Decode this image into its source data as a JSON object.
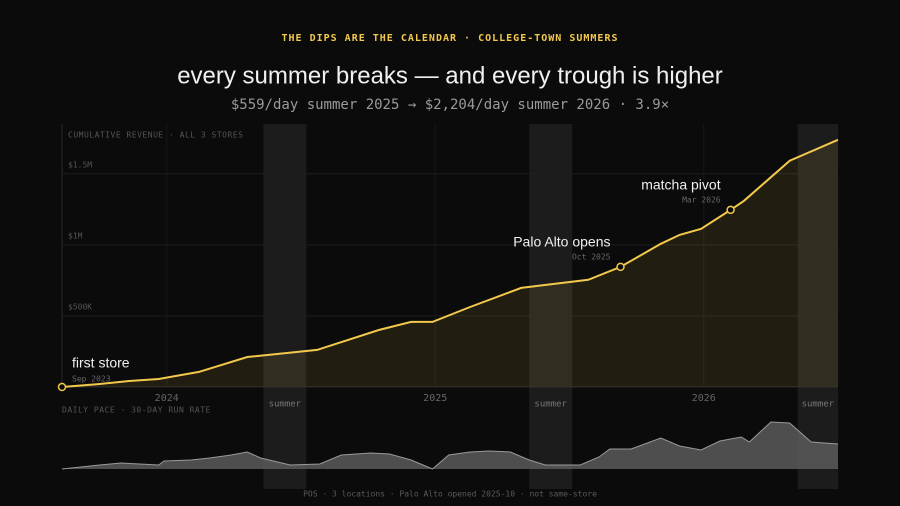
{
  "kicker": "THE DIPS ARE THE CALENDAR · COLLEGE-TOWN SUMMERS",
  "title": "every summer breaks — and every trough is higher",
  "subtitle": "$559/day summer 2025 → $2,204/day summer 2026 · 3.9×",
  "footer": "POS · 3 locations · Palo Alto opened 2025-10 · not same-store",
  "chart_data": [
    {
      "type": "line",
      "title": "CUMULATIVE REVENUE · ALL 3 STORES",
      "color": "#f2c94c",
      "grid": true,
      "x": [
        2023.61,
        2023.75,
        2023.86,
        2023.97,
        2024.12,
        2024.3,
        2024.56,
        2024.79,
        2024.91,
        2024.99,
        2025.13,
        2025.32,
        2025.57,
        2025.69,
        2025.84,
        2025.91,
        2025.99,
        2026.1,
        2026.15,
        2026.32,
        2026.5
      ],
      "values": [
        0,
        21000,
        42000,
        56000,
        106000,
        211000,
        261000,
        401000,
        458000,
        458000,
        563000,
        697000,
        754000,
        845000,
        1007000,
        1070000,
        1113000,
        1246000,
        1310000,
        1592000,
        1739000
      ],
      "xlim": [
        2023.61,
        2026.5
      ],
      "xticks": [
        2024,
        2025,
        2026
      ],
      "ylim": [
        0,
        1850000
      ],
      "yticks": [
        {
          "value": 500000,
          "label": "$500K"
        },
        {
          "value": 1000000,
          "label": "$1M"
        },
        {
          "value": 1500000,
          "label": "$1.5M"
        }
      ],
      "annotations": [
        {
          "x": 2023.61,
          "value": 0,
          "label": "first store",
          "date": "Sep 2023"
        },
        {
          "x": 2025.69,
          "value": 845000,
          "label": "Palo Alto opens",
          "date": "Oct 2025"
        },
        {
          "x": 2026.1,
          "value": 1246000,
          "label": "matcha pivot",
          "date": "Mar 2026"
        }
      ],
      "bands": [
        {
          "label": "summer",
          "start": 2024.36,
          "end": 2024.52
        },
        {
          "label": "summer",
          "start": 2025.35,
          "end": 2025.51
        },
        {
          "label": "summer",
          "start": 2026.35,
          "end": 2026.5
        }
      ]
    },
    {
      "type": "area",
      "title": "DAILY PACE · 30-DAY RUN RATE",
      "color": "#5a5a5a",
      "x": [
        2023.61,
        2023.68,
        2023.75,
        2023.83,
        2023.9,
        2023.97,
        2023.99,
        2024.09,
        2024.16,
        2024.24,
        2024.3,
        2024.35,
        2024.46,
        2024.57,
        2024.65,
        2024.76,
        2024.83,
        2024.91,
        2024.99,
        2025.05,
        2025.13,
        2025.2,
        2025.28,
        2025.35,
        2025.41,
        2025.54,
        2025.61,
        2025.65,
        2025.73,
        2025.84,
        2025.91,
        2025.99,
        2026.06,
        2026.14,
        2026.17,
        2026.25,
        2026.32,
        2026.4,
        2026.5
      ],
      "values": [
        0,
        260,
        520,
        780,
        650,
        520,
        1040,
        1170,
        1430,
        1815,
        2200,
        1430,
        520,
        650,
        1815,
        2070,
        1940,
        1170,
        0,
        1815,
        2200,
        2330,
        2200,
        1170,
        520,
        520,
        1560,
        2590,
        2590,
        4020,
        2980,
        2460,
        3630,
        4150,
        3500,
        6090,
        5960,
        3500,
        3240
      ],
      "xlim": [
        2023.61,
        2026.5
      ],
      "ylim": [
        0,
        7000
      ]
    }
  ]
}
